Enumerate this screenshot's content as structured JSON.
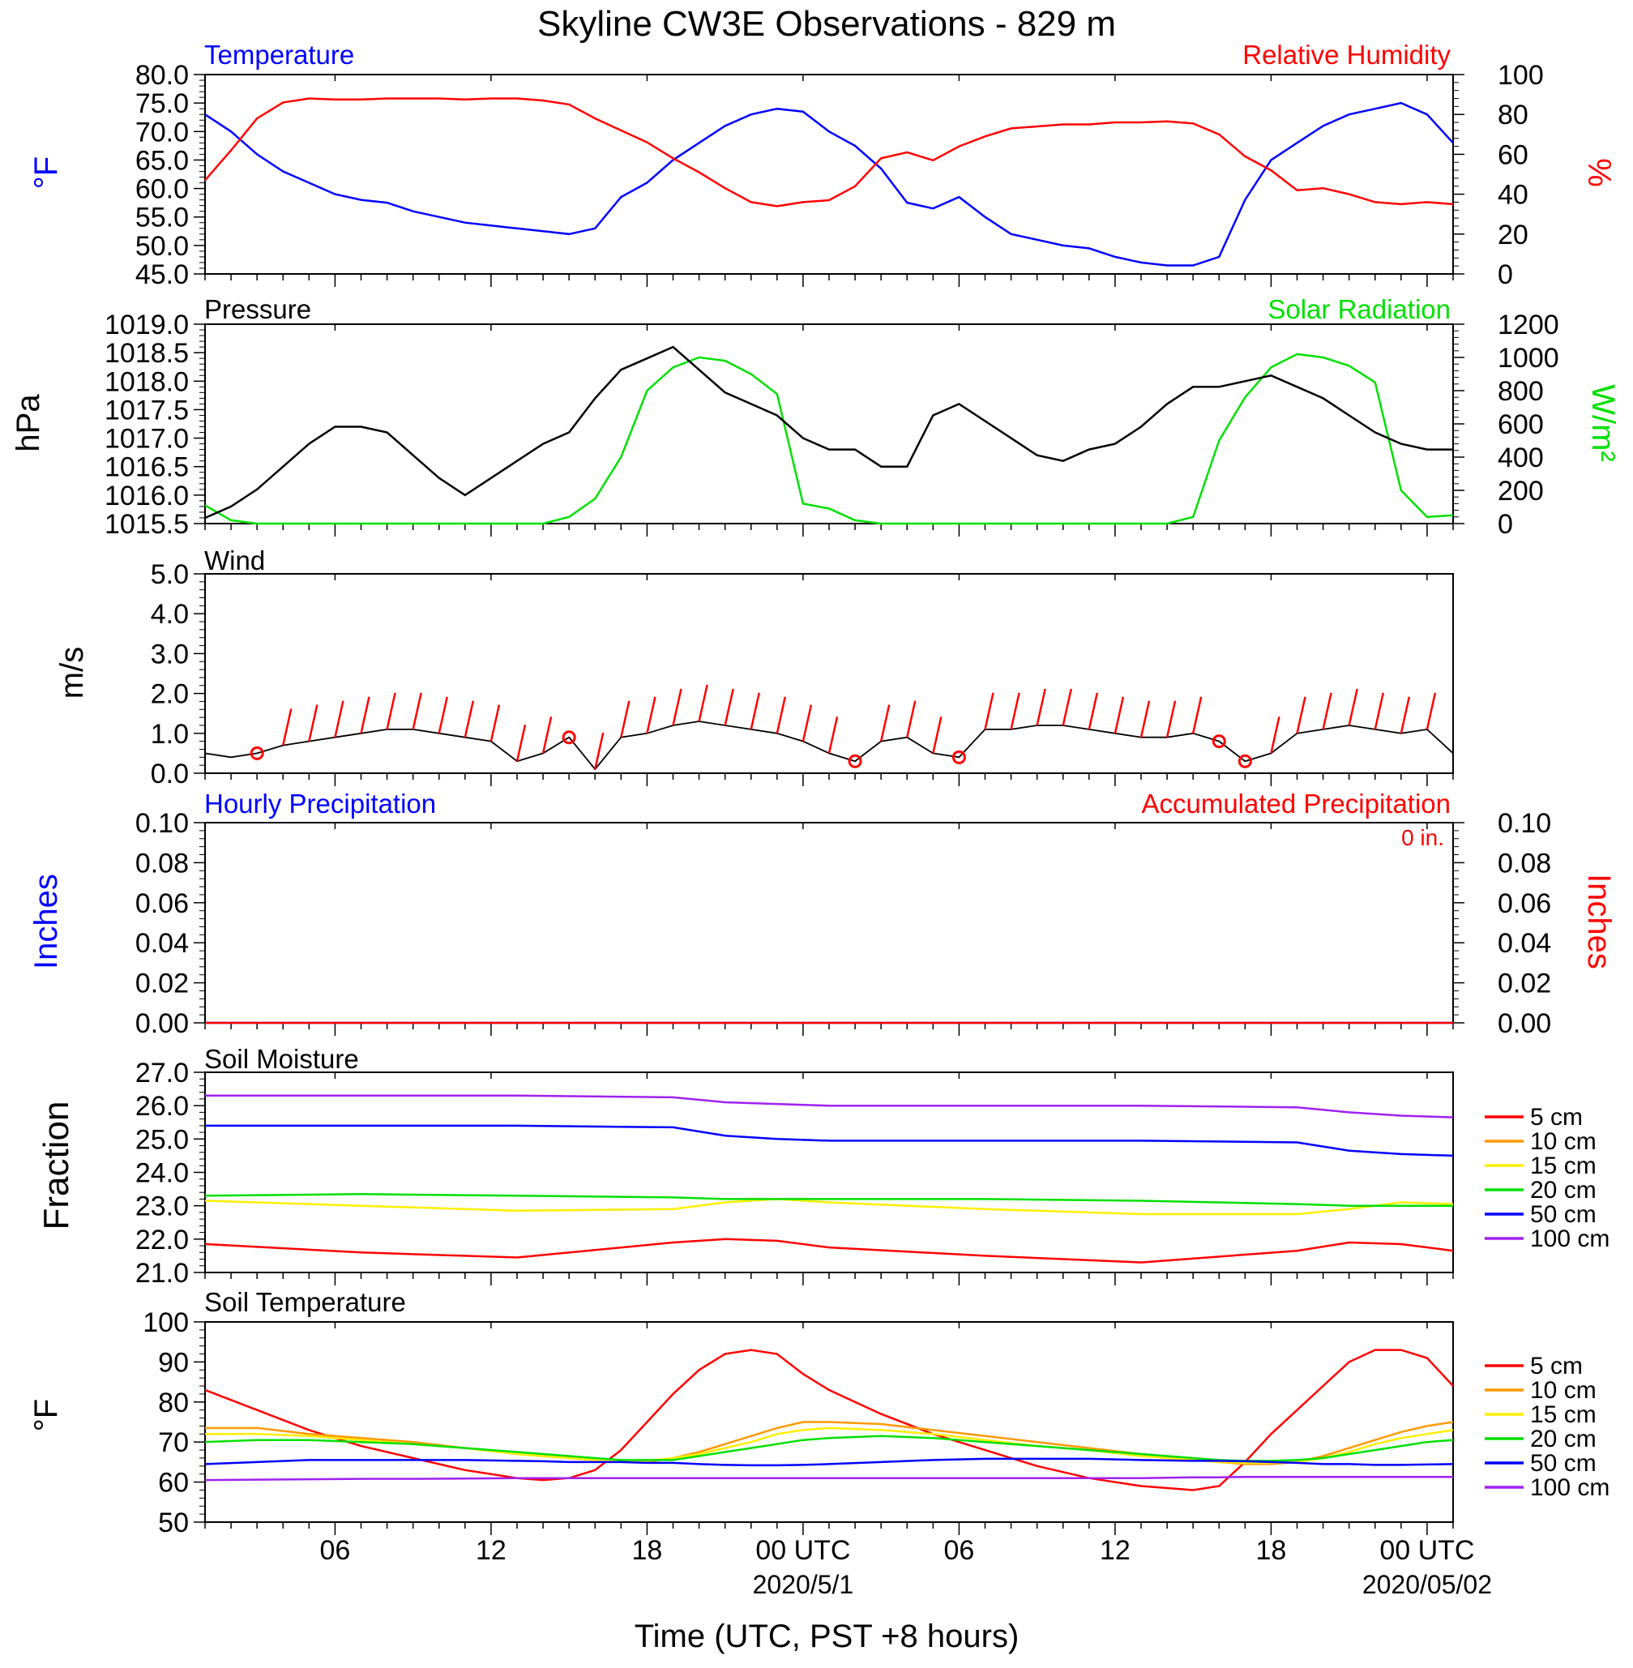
{
  "title": "Skyline CW3E Observations - 829 m",
  "colors": {
    "blue": "#0000ff",
    "red": "#ff0000",
    "green": "#00e000",
    "black": "#000000",
    "orange": "#ff9900",
    "yellow": "#ffee00",
    "purple": "#a020f0"
  },
  "x_axis": {
    "title": "Time (UTC, PST +8 hours)",
    "range_hours": [
      0,
      48
    ],
    "tick_labels": [
      {
        "hour": 5,
        "label": "06"
      },
      {
        "hour": 11,
        "label": "12"
      },
      {
        "hour": 17,
        "label": "18"
      },
      {
        "hour": 23,
        "label": "00 UTC",
        "date": "2020/5/1"
      },
      {
        "hour": 29,
        "label": "06"
      },
      {
        "hour": 35,
        "label": "12"
      },
      {
        "hour": 41,
        "label": "18"
      },
      {
        "hour": 47,
        "label": "00 UTC",
        "date": "2020/05/02"
      }
    ]
  },
  "panels": {
    "temp_rh": {
      "left_title": "Temperature",
      "right_title": "Relative Humidity",
      "left_unit": "°F",
      "right_unit": "%",
      "left_ticks": [
        "80.0",
        "75.0",
        "70.0",
        "65.0",
        "60.0",
        "55.0",
        "50.0",
        "45.0"
      ],
      "right_ticks": [
        "100",
        "80",
        "60",
        "40",
        "20",
        "0"
      ]
    },
    "pressure_solar": {
      "left_title": "Pressure",
      "right_title": "Solar Radiation",
      "left_unit": "hPa",
      "right_unit": "W/m²",
      "left_ticks": [
        "1019.0",
        "1018.5",
        "1018.0",
        "1017.5",
        "1017.0",
        "1016.5",
        "1016.0",
        "1015.5"
      ],
      "right_ticks": [
        "1200",
        "1000",
        "800",
        "600",
        "400",
        "200",
        "0"
      ]
    },
    "wind": {
      "left_title": "Wind",
      "left_unit": "m/s",
      "left_ticks": [
        "5.0",
        "4.0",
        "3.0",
        "2.0",
        "1.0",
        "0.0"
      ]
    },
    "precip": {
      "left_title": "Hourly Precipitation",
      "right_title": "Accumulated Precipitation",
      "left_unit": "Inches",
      "right_unit": "Inches",
      "total_label": "0 in.",
      "left_ticks": [
        "0.10",
        "0.08",
        "0.06",
        "0.04",
        "0.02",
        "0.00"
      ],
      "right_ticks": [
        "0.10",
        "0.08",
        "0.06",
        "0.04",
        "0.02",
        "0.00"
      ]
    },
    "soil_moisture": {
      "left_title": "Soil Moisture",
      "left_unit": "Fraction",
      "left_ticks": [
        "27.0",
        "26.0",
        "25.0",
        "24.0",
        "23.0",
        "22.0",
        "21.0"
      ],
      "legend": [
        "5 cm",
        "10 cm",
        "15 cm",
        "20 cm",
        "50 cm",
        "100 cm"
      ]
    },
    "soil_temp": {
      "left_title": "Soil Temperature",
      "left_unit": "°F",
      "left_ticks": [
        "100",
        "90",
        "80",
        "70",
        "60",
        "50"
      ],
      "legend": [
        "5 cm",
        "10 cm",
        "15 cm",
        "20 cm",
        "50 cm",
        "100 cm"
      ]
    }
  },
  "chart_data": [
    {
      "type": "line",
      "title": "Temperature / Relative Humidity",
      "x": [
        0,
        1,
        2,
        3,
        4,
        5,
        6,
        7,
        8,
        9,
        10,
        11,
        12,
        13,
        14,
        15,
        16,
        17,
        18,
        19,
        20,
        21,
        22,
        23,
        24,
        25,
        26,
        27,
        28,
        29,
        30,
        31,
        32,
        33,
        34,
        35,
        36,
        37,
        38,
        39,
        40,
        41,
        42,
        43,
        44,
        45,
        46,
        47,
        48
      ],
      "series": [
        {
          "name": "Temperature",
          "axis": "left",
          "ylim": [
            45,
            80
          ],
          "values": [
            73,
            70,
            66,
            63,
            61,
            59,
            58,
            57.5,
            56,
            55,
            54,
            53.5,
            53,
            52.5,
            52,
            53,
            58.5,
            61,
            65,
            68,
            71,
            73,
            74,
            73.5,
            70,
            67.5,
            63.5,
            57.5,
            56.5,
            58.5,
            55,
            52,
            51,
            50,
            49.5,
            48,
            47,
            46.5,
            46.5,
            48,
            58,
            65,
            68,
            71,
            73,
            74,
            75,
            73,
            68
          ]
        },
        {
          "name": "Relative Humidity",
          "axis": "right",
          "ylim": [
            0,
            100
          ],
          "values": [
            47,
            62,
            78,
            86,
            88,
            87.5,
            87.5,
            88,
            88,
            88,
            87.5,
            88,
            88,
            87,
            85,
            78,
            72,
            66,
            58,
            51,
            43,
            36,
            34,
            36,
            37,
            44,
            58,
            61,
            57,
            64,
            69,
            73,
            74,
            75,
            75,
            76,
            76,
            76.5,
            75.5,
            70,
            59,
            52,
            42,
            43,
            40,
            36,
            35,
            36,
            35
          ]
        }
      ]
    },
    {
      "type": "line",
      "title": "Pressure / Solar Radiation",
      "x": [
        0,
        1,
        2,
        3,
        4,
        5,
        6,
        7,
        8,
        9,
        10,
        11,
        12,
        13,
        14,
        15,
        16,
        17,
        18,
        19,
        20,
        21,
        22,
        23,
        24,
        25,
        26,
        27,
        28,
        29,
        30,
        31,
        32,
        33,
        34,
        35,
        36,
        37,
        38,
        39,
        40,
        41,
        42,
        43,
        44,
        45,
        46,
        47,
        48
      ],
      "series": [
        {
          "name": "Pressure",
          "axis": "left",
          "ylim": [
            1015.5,
            1019.0
          ],
          "values": [
            1015.6,
            1015.8,
            1016.1,
            1016.5,
            1016.9,
            1017.2,
            1017.2,
            1017.1,
            1016.7,
            1016.3,
            1016.0,
            1016.3,
            1016.6,
            1016.9,
            1017.1,
            1017.7,
            1018.2,
            1018.4,
            1018.6,
            1018.2,
            1017.8,
            1017.6,
            1017.4,
            1017.0,
            1016.8,
            1016.8,
            1016.5,
            1016.5,
            1017.4,
            1017.6,
            1017.3,
            1017.0,
            1016.7,
            1016.6,
            1016.8,
            1016.9,
            1017.2,
            1017.6,
            1017.9,
            1017.9,
            1018.0,
            1018.1,
            1017.9,
            1017.7,
            1017.4,
            1017.1,
            1016.9,
            1016.8,
            1016.8
          ]
        },
        {
          "name": "Solar Radiation",
          "axis": "right",
          "ylim": [
            0,
            1200
          ],
          "values": [
            110,
            20,
            0,
            0,
            0,
            0,
            0,
            0,
            0,
            0,
            0,
            0,
            0,
            0,
            40,
            150,
            400,
            800,
            940,
            1000,
            980,
            900,
            780,
            120,
            90,
            20,
            0,
            0,
            0,
            0,
            0,
            0,
            0,
            0,
            0,
            0,
            0,
            0,
            40,
            500,
            760,
            940,
            1020,
            1000,
            950,
            850,
            200,
            40,
            50
          ]
        }
      ]
    },
    {
      "type": "line",
      "title": "Wind",
      "ylim": [
        0,
        5
      ],
      "x": [
        0,
        1,
        2,
        3,
        4,
        5,
        6,
        7,
        8,
        9,
        10,
        11,
        12,
        13,
        14,
        15,
        16,
        17,
        18,
        19,
        20,
        21,
        22,
        23,
        24,
        25,
        26,
        27,
        28,
        29,
        30,
        31,
        32,
        33,
        34,
        35,
        36,
        37,
        38,
        39,
        40,
        41,
        42,
        43,
        44,
        45,
        46,
        47,
        48
      ],
      "series": [
        {
          "name": "Wind speed",
          "values": [
            0.5,
            0.4,
            0.5,
            0.7,
            0.8,
            0.9,
            1.0,
            1.1,
            1.1,
            1.0,
            0.9,
            0.8,
            0.3,
            0.5,
            0.9,
            0.1,
            0.9,
            1.0,
            1.2,
            1.3,
            1.2,
            1.1,
            1.0,
            0.8,
            0.5,
            0.3,
            0.8,
            0.9,
            0.5,
            0.4,
            1.1,
            1.1,
            1.2,
            1.2,
            1.1,
            1.0,
            0.9,
            0.9,
            1.0,
            0.8,
            0.3,
            0.5,
            1.0,
            1.1,
            1.2,
            1.1,
            1.0,
            1.1,
            0.5
          ]
        }
      ],
      "calm_markers_hours": [
        2,
        14,
        25,
        29,
        39,
        40
      ]
    },
    {
      "type": "line",
      "title": "Precipitation",
      "ylim": [
        0,
        0.1
      ],
      "series": [
        {
          "name": "Hourly Precipitation",
          "values": [
            0,
            0
          ]
        },
        {
          "name": "Accumulated Precipitation",
          "values": [
            0,
            0
          ]
        }
      ]
    },
    {
      "type": "line",
      "title": "Soil Moisture",
      "ylim": [
        21,
        27
      ],
      "x": [
        0,
        6,
        12,
        18,
        20,
        22,
        24,
        30,
        36,
        42,
        44,
        46,
        48
      ],
      "series": [
        {
          "name": "5 cm",
          "values": [
            21.85,
            21.6,
            21.45,
            21.9,
            22.0,
            21.95,
            21.75,
            21.5,
            21.3,
            21.65,
            21.9,
            21.85,
            21.65
          ]
        },
        {
          "name": "15 cm",
          "values": [
            23.15,
            23.0,
            22.85,
            22.9,
            23.1,
            23.2,
            23.1,
            22.9,
            22.75,
            22.75,
            22.9,
            23.1,
            23.05
          ]
        },
        {
          "name": "20 cm",
          "values": [
            23.3,
            23.35,
            23.3,
            23.25,
            23.2,
            23.2,
            23.2,
            23.2,
            23.15,
            23.05,
            23.0,
            23.0,
            23.0
          ]
        },
        {
          "name": "50 cm",
          "values": [
            25.4,
            25.4,
            25.4,
            25.35,
            25.1,
            25.0,
            24.95,
            24.95,
            24.95,
            24.9,
            24.65,
            24.55,
            24.5
          ]
        },
        {
          "name": "100 cm",
          "values": [
            26.3,
            26.3,
            26.3,
            26.25,
            26.1,
            26.05,
            26.0,
            26.0,
            26.0,
            25.95,
            25.8,
            25.7,
            25.65
          ]
        }
      ]
    },
    {
      "type": "line",
      "title": "Soil Temperature",
      "ylim": [
        50,
        100
      ],
      "x": [
        0,
        2,
        4,
        6,
        8,
        10,
        12,
        13,
        14,
        15,
        16,
        17,
        18,
        19,
        20,
        21,
        22,
        23,
        24,
        26,
        28,
        30,
        32,
        34,
        36,
        38,
        39,
        40,
        41,
        42,
        43,
        44,
        45,
        46,
        47,
        48
      ],
      "series": [
        {
          "name": "5 cm",
          "values": [
            83,
            78,
            73,
            69,
            66,
            63,
            61,
            60.5,
            61,
            63,
            68,
            75,
            82,
            88,
            92,
            93,
            92,
            87,
            83,
            77,
            72,
            68,
            64,
            61,
            59,
            58,
            59,
            65,
            72,
            78,
            84,
            90,
            93,
            93,
            91,
            84
          ]
        },
        {
          "name": "10 cm",
          "values": [
            73.5,
            73.5,
            72,
            71,
            70,
            68.5,
            67,
            66.5,
            66,
            65.5,
            65,
            65,
            66,
            67.5,
            69.5,
            71.5,
            73.5,
            75,
            75,
            74.5,
            73,
            71.5,
            70,
            68.5,
            67,
            65.5,
            65,
            64.5,
            64.5,
            65,
            66.5,
            68.5,
            70.5,
            72.5,
            74,
            75
          ]
        },
        {
          "name": "15 cm",
          "values": [
            72,
            72,
            71.5,
            70.5,
            69.5,
            68.5,
            67,
            66.5,
            66,
            65.5,
            65.3,
            65.3,
            66,
            67,
            68.5,
            70,
            72,
            73,
            73.5,
            73,
            72,
            70.5,
            69,
            68,
            66.5,
            65.5,
            65,
            64.8,
            64.8,
            65,
            66,
            67.5,
            69.5,
            71,
            72,
            73
          ]
        },
        {
          "name": "20 cm",
          "values": [
            70,
            70.5,
            70.5,
            70,
            69.5,
            68.5,
            67.5,
            67,
            66.5,
            66,
            65.5,
            65.5,
            65.5,
            66.5,
            67.5,
            68.5,
            69.5,
            70.5,
            71,
            71.5,
            71,
            70,
            69,
            68,
            67,
            66,
            65.5,
            65.3,
            65.3,
            65.5,
            66,
            67,
            68,
            69,
            70,
            70.5
          ]
        },
        {
          "name": "50 cm",
          "values": [
            64.5,
            65,
            65.5,
            65.5,
            65.5,
            65.5,
            65.3,
            65.2,
            65,
            65,
            65,
            64.8,
            64.8,
            64.5,
            64.3,
            64.2,
            64.2,
            64.3,
            64.5,
            65,
            65.5,
            65.8,
            65.8,
            65.8,
            65.5,
            65.3,
            65.3,
            65.2,
            65,
            64.8,
            64.5,
            64.5,
            64.3,
            64.3,
            64.4,
            64.5
          ]
        },
        {
          "name": "100 cm",
          "values": [
            60.5,
            60.6,
            60.7,
            60.8,
            60.8,
            60.9,
            61,
            61,
            61,
            61,
            61,
            61,
            61,
            61,
            61,
            61,
            61,
            61,
            61,
            61,
            61,
            61,
            61,
            61,
            61,
            61.2,
            61.2,
            61.3,
            61.3,
            61.3,
            61.3,
            61.3,
            61.3,
            61.3,
            61.3,
            61.3
          ]
        }
      ]
    }
  ]
}
